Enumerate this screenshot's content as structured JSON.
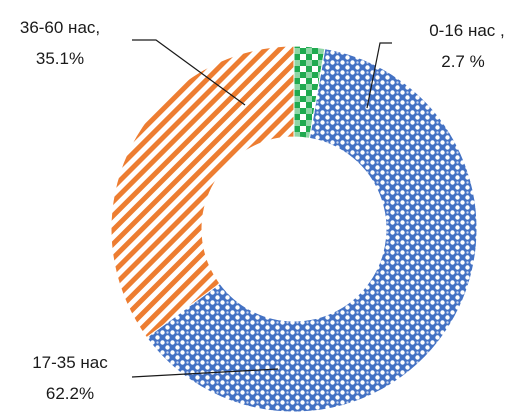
{
  "chart_data": {
    "type": "donut",
    "title": "",
    "slices": [
      {
        "key": "age_0_16",
        "label_line1": "0-16 нас ,",
        "label_line2": "2.7 %",
        "value": 2.7,
        "color": "#1faa4f",
        "pattern": "checker-large"
      },
      {
        "key": "age_17_35",
        "label_line1": "17-35 нас",
        "label_line2": "62.2%",
        "value": 62.2,
        "color": "#4472c4",
        "pattern": "dotted-grid"
      },
      {
        "key": "age_36_60",
        "label_line1": "36-60 нас,",
        "label_line2": "35.1%",
        "value": 35.1,
        "color": "#ed7d31",
        "pattern": "diagonal-stripes"
      }
    ]
  }
}
